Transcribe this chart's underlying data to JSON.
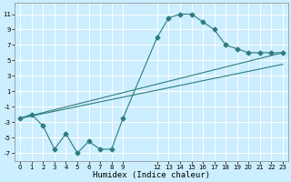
{
  "xlabel": "Humidex (Indice chaleur)",
  "xlim": [
    -0.5,
    23.5
  ],
  "ylim": [
    -8,
    12.5
  ],
  "yticks": [
    -7,
    -5,
    -3,
    -1,
    1,
    3,
    5,
    7,
    9,
    11
  ],
  "xtick_positions": [
    0,
    1,
    2,
    3,
    4,
    5,
    6,
    7,
    8,
    9,
    12,
    13,
    14,
    15,
    16,
    17,
    18,
    19,
    20,
    21,
    22,
    23
  ],
  "xtick_labels": [
    "0",
    "1",
    "2",
    "3",
    "4",
    "5",
    "6",
    "7",
    "8",
    "9",
    "12",
    "13",
    "14",
    "15",
    "16",
    "17",
    "18",
    "19",
    "20",
    "21",
    "22",
    "23"
  ],
  "background_color": "#cceeff",
  "grid_color": "#ffffff",
  "line_color": "#2d7d7d",
  "line1_x": [
    0,
    1,
    2,
    3,
    4,
    5,
    6,
    7,
    8,
    9,
    12,
    13,
    14,
    15,
    16,
    17,
    18,
    19,
    20,
    21,
    22,
    23
  ],
  "line1_y": [
    -2.5,
    -2.0,
    -3.5,
    -6.5,
    -4.5,
    -7.0,
    -5.5,
    -6.5,
    -6.5,
    -2.5,
    8.0,
    10.5,
    11.0,
    11.0,
    10.0,
    9.0,
    7.0,
    6.5,
    6.0,
    6.0,
    6.0,
    6.0
  ],
  "line2_x": [
    0,
    23
  ],
  "line2_y": [
    -2.5,
    6.0
  ],
  "line3_x": [
    0,
    23
  ],
  "line3_y": [
    -2.5,
    4.5
  ],
  "marker": "D",
  "markersize": 2.5,
  "linewidth": 0.8,
  "tick_fontsize": 5,
  "xlabel_fontsize": 6.5
}
